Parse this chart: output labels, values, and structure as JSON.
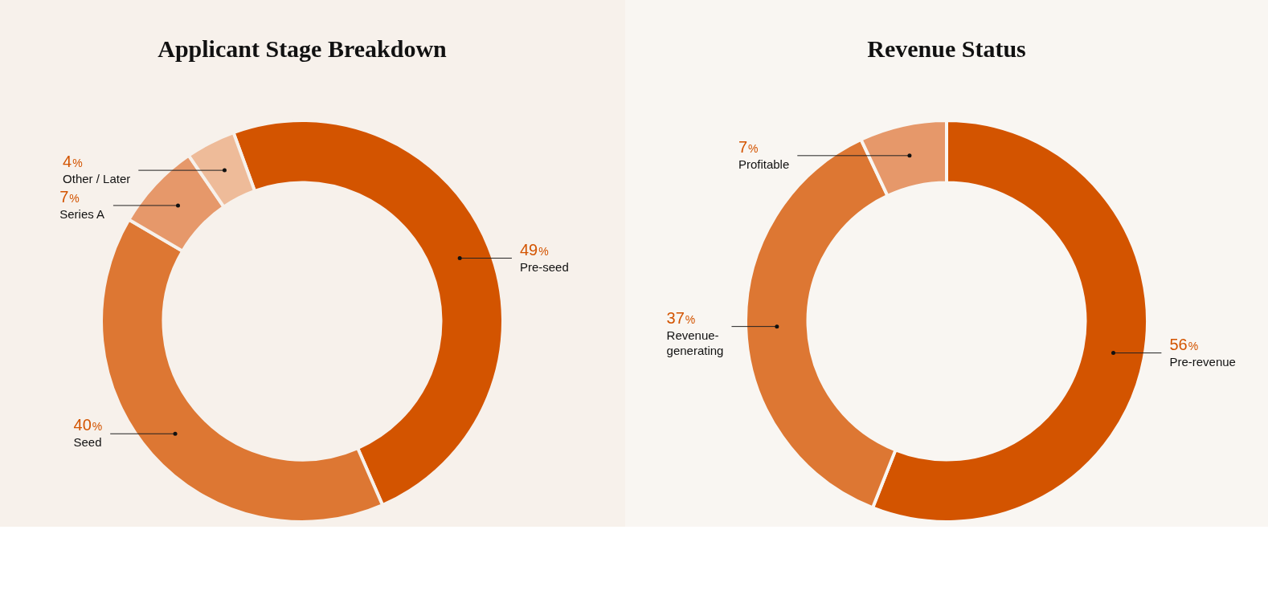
{
  "chart_data": [
    {
      "type": "donut",
      "title": "Applicant Stage Breakdown",
      "categories": [
        "Pre-seed",
        "Seed",
        "Series A",
        "Other / Later"
      ],
      "values": [
        49,
        40,
        7,
        4
      ],
      "value_labels": [
        "49%",
        "40%",
        "7%",
        "4%"
      ],
      "colors": [
        "#d35400",
        "#dd7733",
        "#e6986a",
        "#eebb99"
      ]
    },
    {
      "type": "donut",
      "title": "Revenue Status",
      "categories": [
        "Pre-revenue",
        "Revenue-generating",
        "Profitable"
      ],
      "values": [
        56,
        37,
        7
      ],
      "value_labels": [
        "56%",
        "37%",
        "7%"
      ],
      "colors": [
        "#d35400",
        "#dd7733",
        "#e6986a"
      ]
    }
  ]
}
